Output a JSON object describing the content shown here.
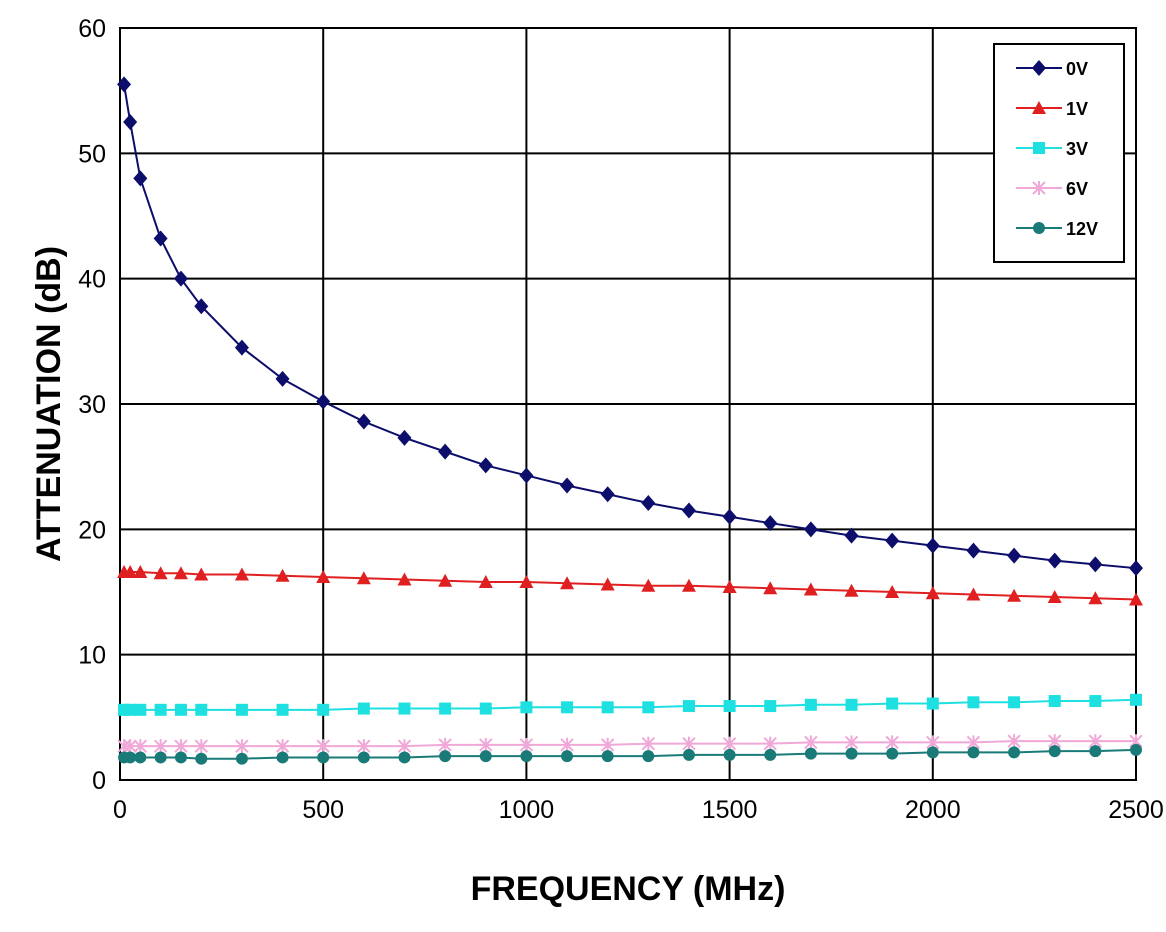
{
  "chart_data": {
    "type": "line",
    "title": "",
    "xlabel": "FREQUENCY (MHz)",
    "ylabel": "ATTENUATION (dB)",
    "xlim": [
      0,
      2500
    ],
    "ylim": [
      0,
      60
    ],
    "xticks": [
      0,
      500,
      1000,
      1500,
      2000,
      2500
    ],
    "yticks": [
      0,
      10,
      20,
      30,
      40,
      50,
      60
    ],
    "grid": true,
    "legend_position": "top-right",
    "x": [
      10,
      25,
      50,
      100,
      150,
      200,
      300,
      400,
      500,
      600,
      700,
      800,
      900,
      1000,
      1100,
      1200,
      1300,
      1400,
      1500,
      1600,
      1700,
      1800,
      1900,
      2000,
      2100,
      2200,
      2300,
      2400,
      2500
    ],
    "series": [
      {
        "name": "0V",
        "color": "#0d0d6b",
        "marker": "diamond",
        "values": [
          55.5,
          52.5,
          48,
          43.2,
          40,
          37.8,
          34.5,
          32,
          30.2,
          28.6,
          27.3,
          26.2,
          25.1,
          24.3,
          23.5,
          22.8,
          22.1,
          21.5,
          21,
          20.5,
          20,
          19.5,
          19.1,
          18.7,
          18.3,
          17.9,
          17.5,
          17.2,
          16.9
        ]
      },
      {
        "name": "1V",
        "color": "#e02020",
        "marker": "triangle",
        "values": [
          16.6,
          16.6,
          16.6,
          16.5,
          16.5,
          16.4,
          16.4,
          16.3,
          16.2,
          16.1,
          16.0,
          15.9,
          15.8,
          15.8,
          15.7,
          15.6,
          15.5,
          15.5,
          15.4,
          15.3,
          15.2,
          15.1,
          15.0,
          14.9,
          14.8,
          14.7,
          14.6,
          14.5,
          14.4
        ]
      },
      {
        "name": "3V",
        "color": "#1fe0e0",
        "marker": "square",
        "values": [
          5.6,
          5.6,
          5.6,
          5.6,
          5.6,
          5.6,
          5.6,
          5.6,
          5.6,
          5.7,
          5.7,
          5.7,
          5.7,
          5.8,
          5.8,
          5.8,
          5.8,
          5.9,
          5.9,
          5.9,
          6.0,
          6.0,
          6.1,
          6.1,
          6.2,
          6.2,
          6.3,
          6.3,
          6.4
        ]
      },
      {
        "name": "6V",
        "color": "#f0a8d8",
        "marker": "asterisk",
        "values": [
          2.7,
          2.7,
          2.7,
          2.7,
          2.7,
          2.7,
          2.7,
          2.7,
          2.7,
          2.7,
          2.7,
          2.8,
          2.8,
          2.8,
          2.8,
          2.8,
          2.9,
          2.9,
          2.9,
          2.9,
          3.0,
          3.0,
          3.0,
          3.0,
          3.0,
          3.1,
          3.1,
          3.1,
          3.1
        ]
      },
      {
        "name": "12V",
        "color": "#1a7a78",
        "marker": "circle",
        "values": [
          1.8,
          1.8,
          1.8,
          1.8,
          1.8,
          1.7,
          1.7,
          1.8,
          1.8,
          1.8,
          1.8,
          1.9,
          1.9,
          1.9,
          1.9,
          1.9,
          1.9,
          2.0,
          2.0,
          2.0,
          2.1,
          2.1,
          2.1,
          2.2,
          2.2,
          2.2,
          2.3,
          2.3,
          2.4
        ]
      }
    ]
  }
}
